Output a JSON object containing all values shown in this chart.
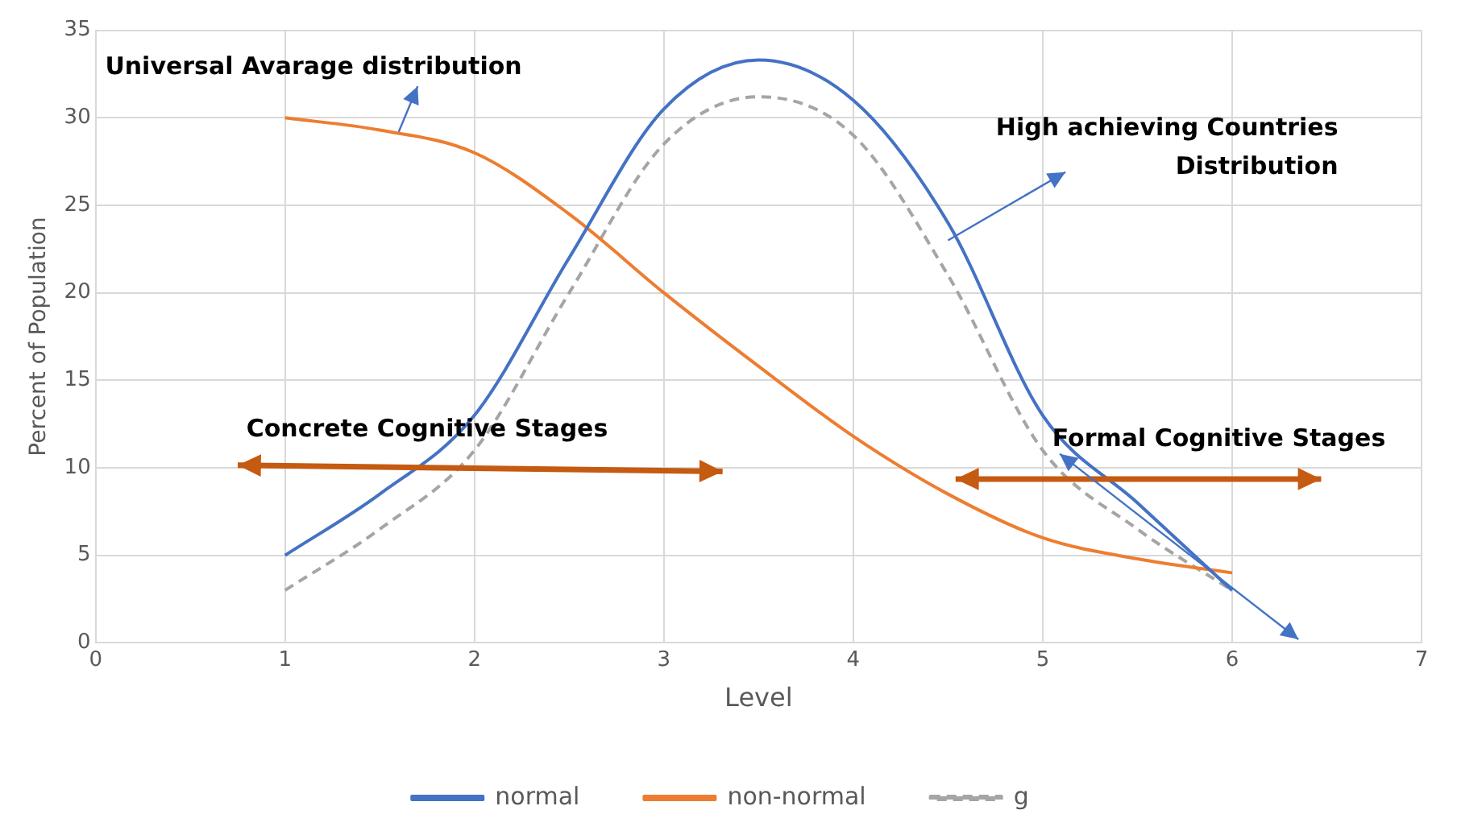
{
  "chart_data": {
    "type": "line",
    "xlabel": "Level",
    "ylabel": "Percent of Population",
    "x": [
      1,
      1.5,
      2,
      2.5,
      3,
      3.5,
      4,
      4.5,
      5,
      5.5,
      6
    ],
    "series": [
      {
        "name": "normal",
        "color": "#4472c4",
        "values": [
          5,
          8.5,
          13,
          22,
          30.5,
          33.3,
          31,
          24,
          13,
          8,
          3
        ]
      },
      {
        "name": "non-normal",
        "color": "#ed7d31",
        "values": [
          30,
          29.3,
          28,
          24.5,
          20,
          15.8,
          11.8,
          8.5,
          6,
          4.8,
          4
        ]
      },
      {
        "name": "g",
        "color": "#a5a5a5",
        "line_style": "dashed",
        "values": [
          3,
          6.5,
          11,
          20,
          28.5,
          31.2,
          29,
          21,
          11,
          6.5,
          3
        ]
      }
    ],
    "xlim": [
      0,
      7
    ],
    "xticks": [
      0,
      1,
      2,
      3,
      4,
      5,
      6,
      7
    ],
    "ylim": [
      0,
      35
    ],
    "yticks": [
      0,
      5,
      10,
      15,
      20,
      25,
      30,
      35
    ],
    "grid": true,
    "legend": "bottom",
    "marker": "none",
    "line_style": "solid",
    "annotations": [
      {
        "text": "Universal Avarage distribution",
        "x": 1.6,
        "y": 29.2
      },
      {
        "text": "High achieving Countries Distribution",
        "x": 4.5,
        "y": 23
      },
      "Concrete Cognitive Stages",
      "Formal Cognitive Stages"
    ]
  }
}
